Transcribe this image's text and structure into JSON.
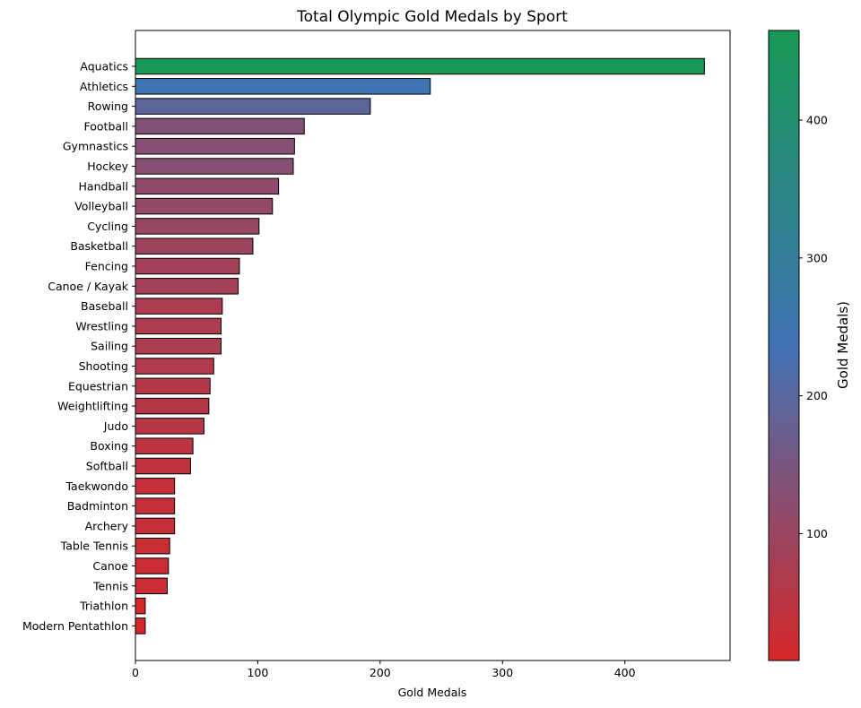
{
  "chart_data": {
    "type": "bar",
    "orientation": "horizontal",
    "title": "Total Olympic Gold Medals by Sport",
    "xlabel": "Gold Medals",
    "ylabel": "",
    "xlim": [
      0,
      486
    ],
    "x_ticks": [
      0,
      100,
      200,
      300,
      400
    ],
    "grid": false,
    "categories": [
      "Aquatics",
      "Athletics",
      "Rowing",
      "Football",
      "Gymnastics",
      "Hockey",
      "Handball",
      "Volleyball",
      "Cycling",
      "Basketball",
      "Fencing",
      "Canoe / Kayak",
      "Baseball",
      "Wrestling",
      "Sailing",
      "Shooting",
      "Equestrian",
      "Weightlifting",
      "Judo",
      "Boxing",
      "Softball",
      "Taekwondo",
      "Badminton",
      "Archery",
      "Table Tennis",
      "Canoe",
      "Tennis",
      "Triathlon",
      "Modern Pentathlon"
    ],
    "values": [
      465,
      241,
      192,
      138,
      130,
      129,
      117,
      112,
      101,
      96,
      85,
      84,
      71,
      70,
      70,
      64,
      61,
      60,
      56,
      47,
      45,
      32,
      32,
      32,
      28,
      27,
      26,
      8,
      8
    ],
    "colorbar": {
      "label": "Gold Medals)",
      "range": [
        8,
        465
      ],
      "ticks": [
        100,
        200,
        300,
        400
      ],
      "colors": [
        "#d62728",
        "#4073b5",
        "#179955"
      ]
    },
    "bar_edge_color": "#000000"
  }
}
